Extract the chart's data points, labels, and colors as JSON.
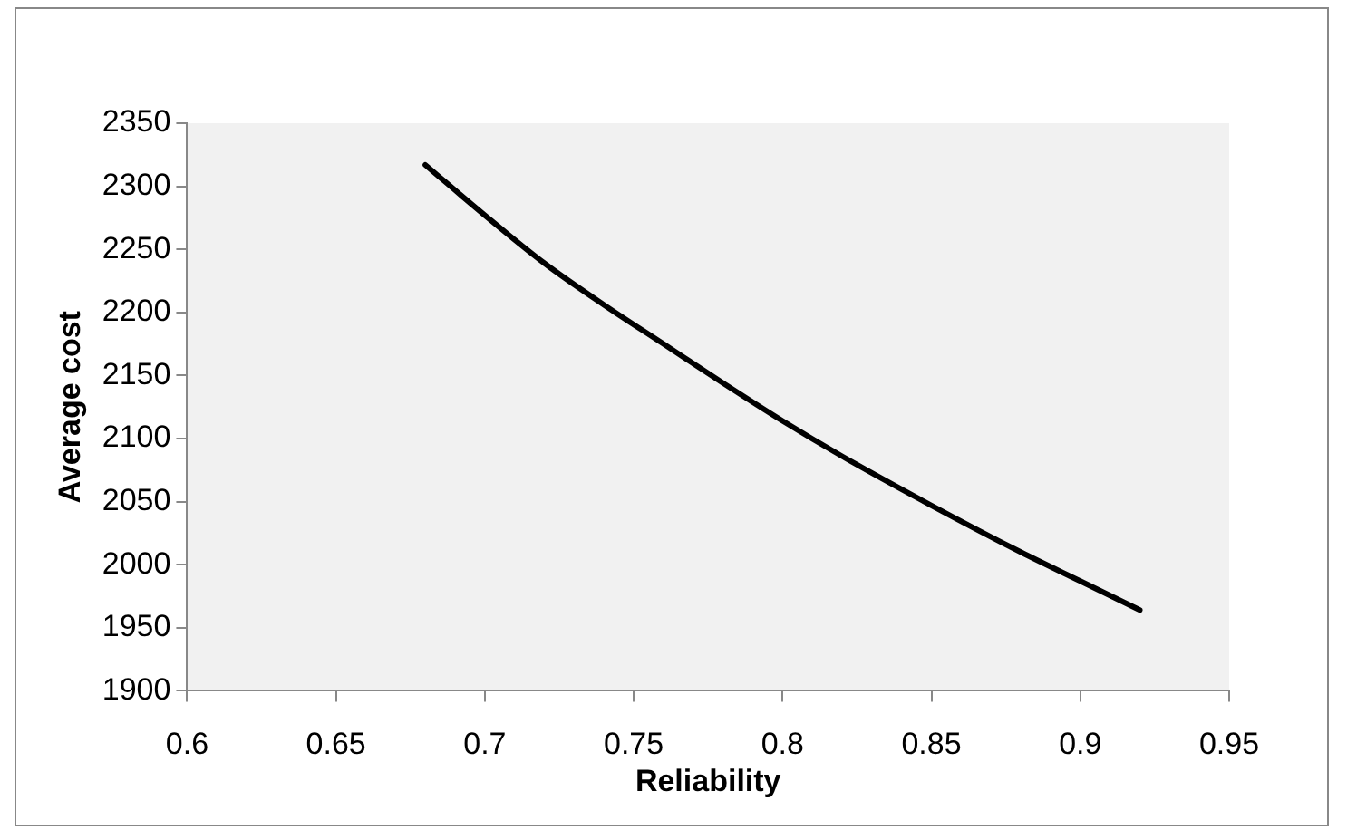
{
  "chart_data": {
    "type": "line",
    "xlabel": "Reliability",
    "ylabel": "Average cost",
    "x": [
      0.68,
      0.7,
      0.72,
      0.74,
      0.76,
      0.78,
      0.8,
      0.82,
      0.85,
      0.88,
      0.9,
      0.92
    ],
    "series": [
      {
        "color": "#000000",
        "values": [
          2317,
          2277,
          2239,
          2206,
          2175,
          2144,
          2114,
          2086,
          2047,
          2010,
          1987,
          1964
        ]
      }
    ],
    "xlim": [
      0.6,
      0.95
    ],
    "xticks": [
      0.6,
      0.65,
      0.7,
      0.75,
      0.8,
      0.85,
      0.9,
      0.95
    ],
    "ylim": [
      1900,
      2350
    ],
    "yticks": [
      1900,
      1950,
      2000,
      2050,
      2100,
      2150,
      2200,
      2250,
      2300,
      2350
    ],
    "grid": false,
    "legend": false,
    "marker": "none",
    "line_style": "solid"
  }
}
